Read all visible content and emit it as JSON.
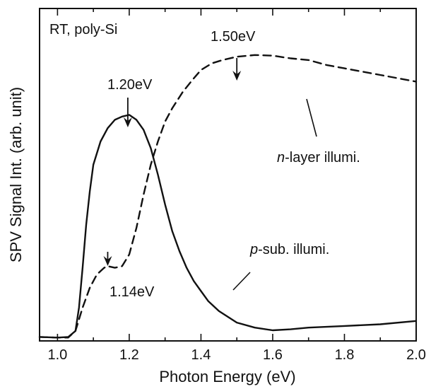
{
  "chart_data": {
    "type": "line",
    "title": "",
    "xlabel": "Photon Energy (eV)",
    "ylabel": "SPV Signal Int. (arb. unit)",
    "xlim": [
      0.95,
      2.0
    ],
    "ylim": [
      0,
      1.0
    ],
    "xticks": [
      1.0,
      1.2,
      1.4,
      1.6,
      1.8,
      2.0
    ],
    "xtick_labels": [
      "1.0",
      "1.2",
      "1.4",
      "1.6",
      "1.8",
      "2.0"
    ],
    "y_tick_labels_shown": false,
    "grid": false,
    "series": [
      {
        "name": "p-sub. illumi.",
        "style": "solid",
        "x": [
          0.95,
          1.0,
          1.03,
          1.05,
          1.06,
          1.07,
          1.08,
          1.09,
          1.1,
          1.12,
          1.14,
          1.16,
          1.18,
          1.2,
          1.22,
          1.24,
          1.26,
          1.28,
          1.3,
          1.32,
          1.34,
          1.36,
          1.38,
          1.4,
          1.42,
          1.45,
          1.5,
          1.55,
          1.6,
          1.65,
          1.7,
          1.8,
          1.9,
          2.0
        ],
        "y": [
          0.012,
          0.01,
          0.012,
          0.03,
          0.1,
          0.22,
          0.35,
          0.45,
          0.53,
          0.6,
          0.64,
          0.665,
          0.675,
          0.68,
          0.665,
          0.635,
          0.58,
          0.5,
          0.41,
          0.33,
          0.27,
          0.22,
          0.18,
          0.15,
          0.12,
          0.09,
          0.055,
          0.04,
          0.032,
          0.035,
          0.04,
          0.045,
          0.05,
          0.06
        ]
      },
      {
        "name": "n-layer illumi.",
        "style": "dashed",
        "x": [
          0.95,
          1.0,
          1.03,
          1.05,
          1.07,
          1.09,
          1.11,
          1.13,
          1.14,
          1.16,
          1.18,
          1.2,
          1.22,
          1.24,
          1.26,
          1.28,
          1.3,
          1.32,
          1.35,
          1.38,
          1.4,
          1.43,
          1.46,
          1.5,
          1.55,
          1.6,
          1.65,
          1.7,
          1.75,
          1.8,
          1.85,
          1.9,
          1.95,
          2.0
        ],
        "y": [
          0.012,
          0.01,
          0.01,
          0.03,
          0.1,
          0.16,
          0.2,
          0.22,
          0.225,
          0.22,
          0.225,
          0.26,
          0.34,
          0.44,
          0.53,
          0.6,
          0.66,
          0.7,
          0.75,
          0.79,
          0.815,
          0.835,
          0.845,
          0.855,
          0.86,
          0.858,
          0.85,
          0.845,
          0.83,
          0.82,
          0.81,
          0.8,
          0.79,
          0.78
        ]
      }
    ],
    "annotations": {
      "sample_label": "RT, poly-Si",
      "peak_p": {
        "label": "1.20eV",
        "x": 1.2
      },
      "peak_n": {
        "label": "1.50eV",
        "x": 1.5
      },
      "shoulder_n": {
        "label": "1.14eV",
        "x": 1.14
      },
      "n_label_italic": "n",
      "n_label_rest": "-layer illumi.",
      "p_label_italic": "p",
      "p_label_rest": "-sub. illumi."
    }
  }
}
